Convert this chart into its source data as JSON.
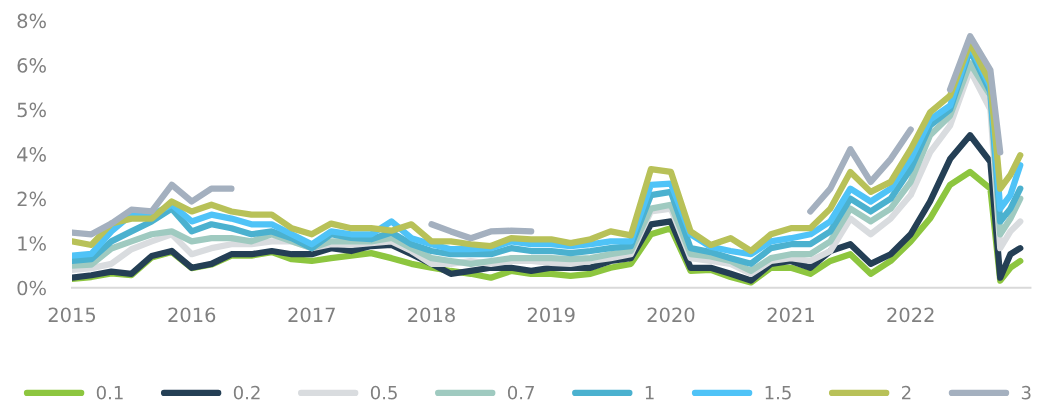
{
  "chart_data": {
    "type": "line",
    "x": [
      "2015-01",
      "2015-03",
      "2015-05",
      "2015-07",
      "2015-09",
      "2015-11",
      "2016-01",
      "2016-03",
      "2016-05",
      "2016-07",
      "2016-09",
      "2016-11",
      "2017-01",
      "2017-03",
      "2017-05",
      "2017-07",
      "2017-09",
      "2017-11",
      "2018-01",
      "2018-03",
      "2018-05",
      "2018-07",
      "2018-09",
      "2018-11",
      "2019-01",
      "2019-03",
      "2019-05",
      "2019-07",
      "2019-09",
      "2019-11",
      "2020-01",
      "2020-03",
      "2020-05",
      "2020-07",
      "2020-09",
      "2020-11",
      "2021-01",
      "2021-03",
      "2021-05",
      "2021-07",
      "2021-09",
      "2021-11",
      "2022-01",
      "2022-03",
      "2022-05",
      "2022-07",
      "2022-09",
      "2022-10",
      "2022-11",
      "2022-12"
    ],
    "series": [
      {
        "name": "0.1",
        "color": "#8dc63f",
        "values": [
          0.25,
          0.3,
          0.4,
          0.35,
          0.85,
          1.0,
          0.55,
          0.65,
          0.9,
          0.9,
          1.0,
          0.8,
          0.75,
          0.83,
          0.9,
          0.97,
          0.83,
          0.67,
          0.56,
          0.47,
          0.39,
          0.28,
          0.47,
          0.39,
          0.39,
          0.33,
          0.39,
          0.56,
          0.67,
          1.5,
          1.67,
          0.47,
          0.5,
          0.3,
          0.15,
          0.56,
          0.56,
          0.39,
          0.75,
          0.94,
          0.39,
          0.75,
          1.3,
          1.94,
          2.89,
          3.25,
          2.78,
          0.2,
          0.56,
          0.75
        ]
      },
      {
        "name": "0.2",
        "color": "#243f55",
        "values": [
          0.28,
          0.35,
          0.45,
          0.39,
          0.89,
          1.03,
          0.56,
          0.67,
          0.94,
          0.94,
          1.03,
          0.94,
          0.94,
          1.11,
          1.03,
          1.17,
          1.2,
          0.94,
          0.67,
          0.39,
          0.47,
          0.56,
          0.56,
          0.47,
          0.56,
          0.56,
          0.56,
          0.75,
          0.83,
          1.78,
          1.86,
          0.56,
          0.56,
          0.39,
          0.2,
          0.67,
          0.75,
          0.56,
          1.03,
          1.22,
          0.67,
          0.94,
          1.5,
          2.42,
          3.61,
          4.28,
          3.53,
          0.28,
          0.94,
          1.11
        ]
      },
      {
        "name": "0.5",
        "color": "#d9dcdf",
        "values": [
          0.5,
          0.55,
          0.67,
          1.08,
          1.3,
          1.5,
          0.94,
          1.11,
          1.22,
          1.22,
          1.3,
          1.3,
          1.11,
          1.22,
          1.2,
          1.25,
          1.3,
          1.03,
          0.67,
          0.67,
          0.75,
          0.67,
          0.75,
          0.75,
          0.7,
          0.67,
          0.75,
          0.83,
          0.94,
          2.14,
          2.22,
          0.83,
          0.75,
          0.67,
          0.39,
          0.75,
          0.83,
          0.75,
          1.03,
          1.94,
          1.5,
          1.94,
          2.6,
          3.8,
          4.55,
          6.11,
          5.0,
          1.11,
          1.58,
          1.86
        ]
      },
      {
        "name": "0.7",
        "color": "#9fcac0",
        "values": [
          0.62,
          0.65,
          1.1,
          1.3,
          1.5,
          1.58,
          1.3,
          1.39,
          1.39,
          1.3,
          1.5,
          1.3,
          1.11,
          1.3,
          1.3,
          1.3,
          1.4,
          1.11,
          0.83,
          0.75,
          0.67,
          0.75,
          0.83,
          0.83,
          0.83,
          0.8,
          0.83,
          0.94,
          1.03,
          2.22,
          2.33,
          0.94,
          0.88,
          0.75,
          0.47,
          0.83,
          0.94,
          0.94,
          1.3,
          2.22,
          1.86,
          2.22,
          2.97,
          4.28,
          4.83,
          6.3,
          5.39,
          1.5,
          1.94,
          2.5
        ]
      },
      {
        "name": "1",
        "color": "#4bb1cf",
        "values": [
          0.75,
          0.8,
          1.3,
          1.58,
          1.86,
          2.22,
          1.58,
          1.78,
          1.67,
          1.5,
          1.58,
          1.39,
          1.11,
          1.5,
          1.4,
          1.36,
          1.55,
          1.22,
          1.03,
          0.94,
          0.94,
          0.94,
          1.11,
          1.03,
          1.03,
          0.97,
          1.03,
          1.11,
          1.17,
          2.6,
          2.69,
          1.11,
          1.0,
          0.83,
          0.67,
          1.11,
          1.22,
          1.22,
          1.58,
          2.5,
          2.14,
          2.5,
          3.33,
          4.55,
          5.0,
          6.67,
          5.5,
          1.86,
          2.22,
          2.78
        ]
      },
      {
        "name": "1.5",
        "color": "#4fc3f7",
        "values": [
          0.9,
          0.95,
          1.58,
          2.05,
          2.05,
          2.33,
          1.86,
          2.05,
          1.94,
          1.78,
          1.78,
          1.5,
          1.22,
          1.58,
          1.5,
          1.5,
          1.86,
          1.39,
          1.22,
          1.08,
          1.08,
          1.11,
          1.3,
          1.22,
          1.22,
          1.17,
          1.22,
          1.3,
          1.3,
          2.89,
          2.92,
          1.5,
          1.15,
          1.03,
          0.94,
          1.3,
          1.39,
          1.5,
          1.86,
          2.78,
          2.42,
          2.78,
          3.61,
          4.72,
          5.11,
          6.78,
          5.64,
          2.22,
          2.6,
          3.44
        ]
      },
      {
        "name": "2",
        "color": "#b8c158",
        "values": [
          1.3,
          1.2,
          1.8,
          1.94,
          1.94,
          2.42,
          2.14,
          2.33,
          2.14,
          2.05,
          2.05,
          1.67,
          1.5,
          1.8,
          1.67,
          1.67,
          1.6,
          1.78,
          1.3,
          1.3,
          1.22,
          1.17,
          1.39,
          1.36,
          1.36,
          1.25,
          1.36,
          1.58,
          1.47,
          3.33,
          3.25,
          1.58,
          1.2,
          1.39,
          1.03,
          1.5,
          1.67,
          1.67,
          2.22,
          3.25,
          2.69,
          2.97,
          3.89,
          4.92,
          5.39,
          6.86,
          5.75,
          2.78,
          3.17,
          3.72
        ]
      },
      {
        "name": "3",
        "color": "#a4b0bf",
        "values": [
          1.55,
          1.5,
          1.8,
          2.19,
          2.14,
          2.89,
          2.42,
          2.78,
          2.78,
          null,
          null,
          null,
          null,
          null,
          null,
          null,
          null,
          null,
          1.78,
          1.58,
          1.39,
          1.58,
          1.6,
          1.58,
          null,
          null,
          null,
          null,
          null,
          null,
          null,
          null,
          null,
          null,
          null,
          null,
          null,
          2.14,
          2.78,
          3.89,
          2.97,
          3.61,
          4.44,
          null,
          5.56,
          7.06,
          6.11,
          3.8,
          null,
          null
        ]
      }
    ],
    "xlim": [
      "2015-01-01",
      "2023-01-01"
    ],
    "xticks": [
      {
        "value": "2015-01-01",
        "label": "2015"
      },
      {
        "value": "2016-01-01",
        "label": "2016"
      },
      {
        "value": "2017-01-01",
        "label": "2017"
      },
      {
        "value": "2018-01-01",
        "label": "2018"
      },
      {
        "value": "2019-01-01",
        "label": "2019"
      },
      {
        "value": "2020-01-01",
        "label": "2020"
      },
      {
        "value": "2021-01-01",
        "label": "2021"
      },
      {
        "value": "2022-01-01",
        "label": "2022"
      }
    ],
    "ylim": [
      0,
      7.5
    ],
    "yticks": [
      {
        "value": 0,
        "label": "0%"
      },
      {
        "value": 1.25,
        "label": "1%"
      },
      {
        "value": 2.5,
        "label": "2%"
      },
      {
        "value": 3.75,
        "label": "4%"
      },
      {
        "value": 5,
        "label": "5%"
      },
      {
        "value": 6.25,
        "label": "6%"
      },
      {
        "value": 7.5,
        "label": "8%"
      }
    ],
    "grid": false,
    "legend": "bottom",
    "marker": "none",
    "line_style": "solid"
  }
}
